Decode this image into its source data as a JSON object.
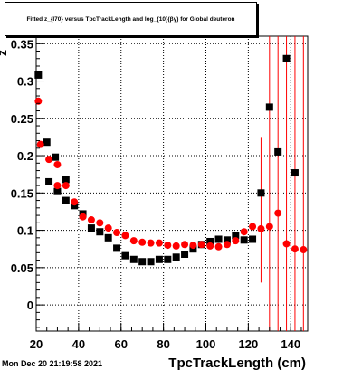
{
  "chart_data": {
    "type": "scatter",
    "title": "Fitted z_{I70} versus TpcTrackLength and log_{10}(βγ) for Global deuteron",
    "xlabel": "TpcTrackLength (cm)",
    "ylabel": "z",
    "xlim": [
      20,
      148
    ],
    "ylim": [
      -0.035,
      0.36
    ],
    "xticks": [
      20,
      40,
      60,
      80,
      100,
      120,
      140
    ],
    "yticks": [
      0,
      0.05,
      0.1,
      0.15,
      0.2,
      0.25,
      0.3,
      0.35
    ],
    "ytick_labels": [
      "0",
      "0.05",
      "0.1",
      "0.15",
      "0.2",
      "0.25",
      "0.3",
      "0.35"
    ],
    "grid": true,
    "series": [
      {
        "color": "#000000",
        "marker": "square",
        "points": [
          {
            "x": 21,
            "y": 0.308
          },
          {
            "x": 25,
            "y": 0.218
          },
          {
            "x": 26,
            "y": 0.165
          },
          {
            "x": 29,
            "y": 0.198
          },
          {
            "x": 30,
            "y": 0.152
          },
          {
            "x": 34,
            "y": 0.168
          },
          {
            "x": 34,
            "y": 0.14
          },
          {
            "x": 38,
            "y": 0.133
          },
          {
            "x": 42,
            "y": 0.122
          },
          {
            "x": 46,
            "y": 0.103
          },
          {
            "x": 50,
            "y": 0.098
          },
          {
            "x": 54,
            "y": 0.09
          },
          {
            "x": 58,
            "y": 0.076
          },
          {
            "x": 62,
            "y": 0.066
          },
          {
            "x": 66,
            "y": 0.061
          },
          {
            "x": 70,
            "y": 0.058
          },
          {
            "x": 74,
            "y": 0.058
          },
          {
            "x": 78,
            "y": 0.061
          },
          {
            "x": 82,
            "y": 0.061
          },
          {
            "x": 86,
            "y": 0.064
          },
          {
            "x": 90,
            "y": 0.068
          },
          {
            "x": 94,
            "y": 0.075
          },
          {
            "x": 98,
            "y": 0.081
          },
          {
            "x": 102,
            "y": 0.085
          },
          {
            "x": 106,
            "y": 0.088
          },
          {
            "x": 110,
            "y": 0.087
          },
          {
            "x": 114,
            "y": 0.093
          },
          {
            "x": 118,
            "y": 0.087
          },
          {
            "x": 122,
            "y": 0.088
          },
          {
            "x": 126,
            "y": 0.15
          },
          {
            "x": 130,
            "y": 0.265
          },
          {
            "x": 134,
            "y": 0.205
          },
          {
            "x": 138,
            "y": 0.33
          },
          {
            "x": 142,
            "y": 0.177
          }
        ]
      },
      {
        "color": "#ff0000",
        "marker": "circle",
        "points": [
          {
            "x": 21,
            "y": 0.273
          },
          {
            "x": 22,
            "y": 0.215
          },
          {
            "x": 26,
            "y": 0.195
          },
          {
            "x": 30,
            "y": 0.188
          },
          {
            "x": 30,
            "y": 0.16
          },
          {
            "x": 34,
            "y": 0.16
          },
          {
            "x": 38,
            "y": 0.138
          },
          {
            "x": 42,
            "y": 0.118
          },
          {
            "x": 46,
            "y": 0.114
          },
          {
            "x": 50,
            "y": 0.11
          },
          {
            "x": 54,
            "y": 0.103
          },
          {
            "x": 58,
            "y": 0.097
          },
          {
            "x": 62,
            "y": 0.093
          },
          {
            "x": 66,
            "y": 0.086
          },
          {
            "x": 70,
            "y": 0.084
          },
          {
            "x": 74,
            "y": 0.083
          },
          {
            "x": 78,
            "y": 0.083
          },
          {
            "x": 82,
            "y": 0.08
          },
          {
            "x": 86,
            "y": 0.079
          },
          {
            "x": 90,
            "y": 0.081
          },
          {
            "x": 94,
            "y": 0.08
          },
          {
            "x": 98,
            "y": 0.081
          },
          {
            "x": 102,
            "y": 0.079
          },
          {
            "x": 106,
            "y": 0.078
          },
          {
            "x": 110,
            "y": 0.081
          },
          {
            "x": 114,
            "y": 0.086
          },
          {
            "x": 118,
            "y": 0.098
          },
          {
            "x": 122,
            "y": 0.105
          },
          {
            "x": 126,
            "y": 0.102
          },
          {
            "x": 130,
            "y": 0.105
          },
          {
            "x": 134,
            "y": 0.123
          },
          {
            "x": 138,
            "y": 0.082
          },
          {
            "x": 142,
            "y": 0.075
          },
          {
            "x": 146,
            "y": 0.074
          }
        ]
      }
    ],
    "error_bars": [
      {
        "x": 126,
        "y_low": 0.03,
        "y_high": 0.225,
        "color": "#ff0000"
      },
      {
        "x": 130,
        "y_low": -0.035,
        "y_high": 0.36,
        "color": "#ff0000"
      },
      {
        "x": 134,
        "y_low": -0.035,
        "y_high": 0.36,
        "color": "#ff0000"
      },
      {
        "x": 138,
        "y_low": -0.035,
        "y_high": 0.36,
        "color": "#ff0000"
      },
      {
        "x": 142,
        "y_low": -0.035,
        "y_high": 0.36,
        "color": "#ff0000"
      },
      {
        "x": 146,
        "y_low": -0.035,
        "y_high": 0.36,
        "color": "#ff0000"
      }
    ]
  },
  "footer": {
    "timestamp": "Mon Dec 20 21:19:58 2021"
  }
}
